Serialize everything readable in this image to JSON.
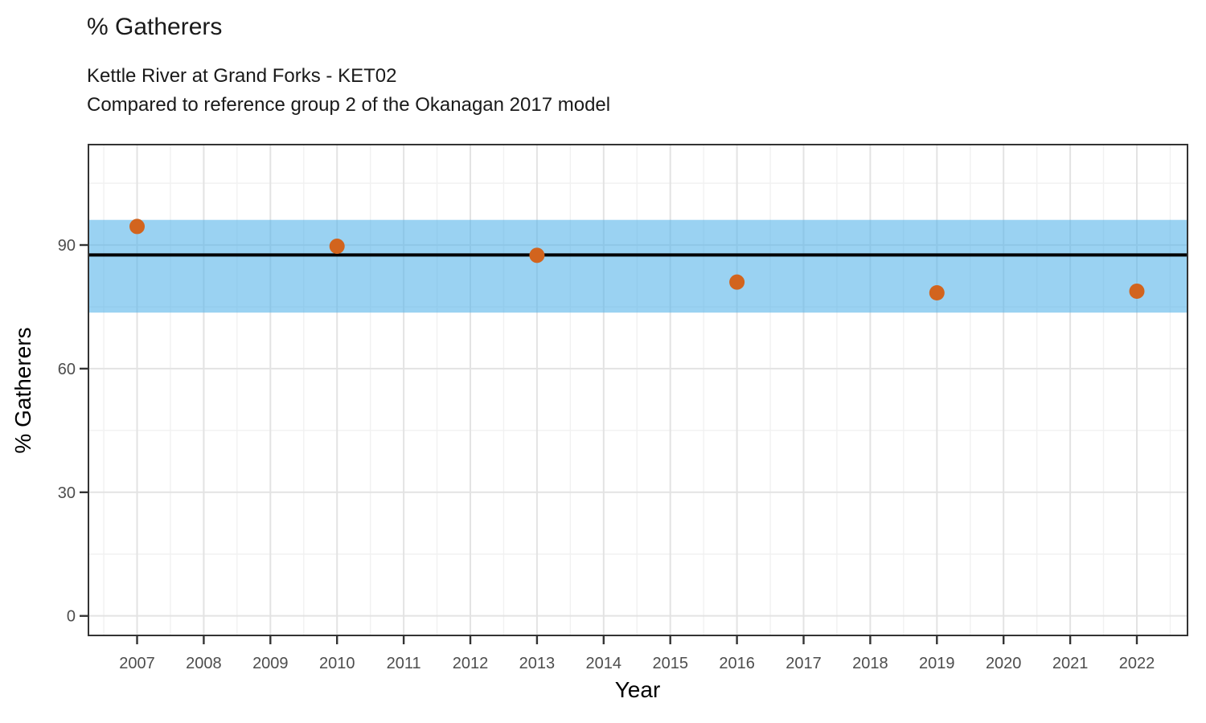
{
  "chart_data": {
    "type": "scatter",
    "title": "% Gatherers",
    "subtitle_lines": [
      "Kettle River at Grand Forks - KET02",
      "Compared to reference group 2 of the Okanagan 2017 model"
    ],
    "xlabel": "Year",
    "ylabel": "% Gatherers",
    "points": [
      {
        "x": 2007,
        "y": 94.5
      },
      {
        "x": 2010,
        "y": 89.7
      },
      {
        "x": 2013,
        "y": 87.5
      },
      {
        "x": 2016,
        "y": 81.0
      },
      {
        "x": 2019,
        "y": 78.4
      },
      {
        "x": 2022,
        "y": 78.8
      }
    ],
    "reference_band": {
      "lower": 73.6,
      "upper": 96.1
    },
    "reference_line": 87.6,
    "x_ticks": [
      2007,
      2008,
      2009,
      2010,
      2011,
      2012,
      2013,
      2014,
      2015,
      2016,
      2017,
      2018,
      2019,
      2020,
      2021,
      2022
    ],
    "x_minor_ticks": [
      2006.5,
      2007.5,
      2008.5,
      2009.5,
      2010.5,
      2011.5,
      2012.5,
      2013.5,
      2014.5,
      2015.5,
      2016.5,
      2017.5,
      2018.5,
      2019.5,
      2020.5,
      2021.5,
      2022.5
    ],
    "y_ticks": [
      0,
      30,
      60,
      90
    ],
    "y_minor_ticks": [
      15,
      45,
      75,
      105
    ],
    "xlim": [
      2006.27,
      2022.76
    ],
    "ylim": [
      -4.74,
      114.37
    ],
    "grid": true,
    "legend_position": "none",
    "colors": {
      "point": "#D2641E",
      "band": "rgba(86, 180, 233, 0.6)",
      "reference_line": "#000000",
      "grid_major": "#E3E3E3",
      "grid_minor": "#F1F1F1",
      "tick_label": "#4D4D4D",
      "axis_title": "#000000",
      "panel_border": "#333333"
    }
  }
}
